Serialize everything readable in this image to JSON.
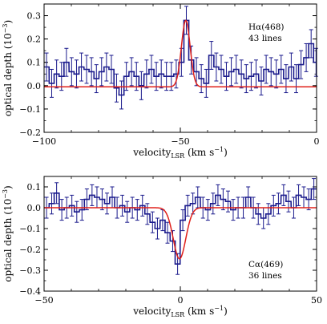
{
  "chart_data": [
    {
      "type": "line",
      "name": "top-panel",
      "annotation": {
        "line1": "Hα(468)",
        "line2": "43 lines"
      },
      "xlabel": {
        "main": "velocity",
        "sub": "LSR",
        "unit": " (km s",
        "sup": "−1",
        "close": ")"
      },
      "ylabel": "optical depth (10",
      "ylabel_sup": "−3",
      "ylabel_close": ")",
      "xlim": [
        -100,
        0
      ],
      "ylim": [
        -0.2,
        0.35
      ],
      "xticks": [
        -100,
        -50,
        0
      ],
      "xtick_labels": [
        "−100",
        "−50",
        "0"
      ],
      "yticks": [
        -0.2,
        -0.1,
        0.0,
        0.1,
        0.2,
        0.3
      ],
      "ytick_labels": [
        "−0.2",
        "−0.1",
        "0.0",
        "0.1",
        "0.2",
        "0.3"
      ],
      "series": [
        {
          "role": "data-histogram-with-errorbars",
          "color": "#1a1a8c",
          "bin_width": 1.84,
          "x": [
            -99.1,
            -97.2,
            -95.4,
            -93.6,
            -91.8,
            -89.9,
            -88.1,
            -86.3,
            -84.4,
            -82.6,
            -80.8,
            -78.9,
            -77.1,
            -75.3,
            -73.4,
            -71.6,
            -69.8,
            -67.9,
            -66.1,
            -64.3,
            -62.4,
            -60.6,
            -58.8,
            -57.0,
            -55.1,
            -53.3,
            -51.5,
            -49.6,
            -47.8,
            -46.0,
            -44.1,
            -42.3,
            -40.5,
            -38.6,
            -36.8,
            -35.0,
            -33.1,
            -31.3,
            -29.5,
            -27.6,
            -25.8,
            -24.0,
            -22.2,
            -20.3,
            -18.5,
            -16.7,
            -14.8,
            -13.0,
            -11.2,
            -9.3,
            -7.5,
            -5.7,
            -3.8,
            -2.0,
            -0.2
          ],
          "y": [
            0.08,
            0.01,
            0.05,
            0.04,
            0.1,
            0.06,
            0.05,
            0.08,
            0.07,
            0.06,
            0.03,
            0.06,
            0.08,
            0.07,
            -0.01,
            -0.04,
            0.04,
            0.06,
            0.04,
            0.0,
            0.05,
            0.07,
            0.04,
            0.05,
            0.04,
            0.04,
            0.05,
            0.1,
            0.28,
            0.11,
            0.06,
            0.03,
            0.01,
            0.13,
            0.08,
            0.07,
            0.04,
            0.06,
            0.07,
            0.05,
            0.03,
            0.04,
            0.05,
            0.02,
            0.07,
            0.06,
            0.05,
            0.07,
            0.03,
            0.08,
            0.03,
            0.09,
            0.12,
            0.18,
            0.1
          ],
          "err": [
            0.06,
            0.06,
            0.06,
            0.06,
            0.06,
            0.06,
            0.06,
            0.06,
            0.06,
            0.06,
            0.06,
            0.06,
            0.06,
            0.06,
            0.06,
            0.06,
            0.06,
            0.06,
            0.06,
            0.06,
            0.06,
            0.06,
            0.06,
            0.06,
            0.06,
            0.06,
            0.06,
            0.06,
            0.06,
            0.06,
            0.06,
            0.06,
            0.06,
            0.06,
            0.06,
            0.06,
            0.06,
            0.06,
            0.06,
            0.06,
            0.06,
            0.06,
            0.06,
            0.06,
            0.06,
            0.06,
            0.06,
            0.06,
            0.06,
            0.06,
            0.06,
            0.06,
            0.06,
            0.06,
            0.06
          ]
        },
        {
          "role": "gaussian-fit",
          "color": "#e0201a",
          "baseline": -0.005,
          "peak": 0.285,
          "center": -48.0,
          "sigma": 1.6
        }
      ]
    },
    {
      "type": "line",
      "name": "bottom-panel",
      "annotation": {
        "line1": "Cα(469)",
        "line2": "36 lines"
      },
      "xlabel": {
        "main": "velocity",
        "sub": "LSR",
        "unit": " (km s",
        "sup": "−1",
        "close": ")"
      },
      "ylabel": "optical depth (10",
      "ylabel_sup": "−3",
      "ylabel_close": ")",
      "xlim": [
        -50,
        50
      ],
      "ylim": [
        -0.4,
        0.15
      ],
      "xticks": [
        -50,
        0,
        50
      ],
      "xtick_labels": [
        "−50",
        "0",
        "50"
      ],
      "yticks": [
        -0.4,
        -0.3,
        -0.2,
        -0.1,
        0.0,
        0.1
      ],
      "ytick_labels": [
        "−0.4",
        "−0.3",
        "−0.2",
        "−0.1",
        "0.0",
        "0.1"
      ],
      "series": [
        {
          "role": "data-histogram-with-errorbars",
          "color": "#1a1a8c",
          "bin_width": 1.85,
          "x": [
            -49.1,
            -47.2,
            -45.4,
            -43.5,
            -41.7,
            -39.8,
            -38.0,
            -36.1,
            -34.3,
            -32.4,
            -30.6,
            -28.7,
            -26.9,
            -25.0,
            -23.2,
            -21.3,
            -19.5,
            -17.6,
            -15.8,
            -13.9,
            -12.1,
            -10.2,
            -8.4,
            -6.5,
            -4.7,
            -2.8,
            -1.0,
            0.9,
            2.7,
            4.6,
            6.4,
            8.3,
            10.1,
            12.0,
            13.8,
            15.7,
            17.5,
            19.4,
            21.2,
            23.1,
            24.9,
            26.8,
            28.6,
            30.5,
            32.3,
            34.2,
            36.0,
            37.9,
            39.7,
            41.6,
            43.4,
            45.3,
            47.1,
            49.0
          ],
          "y": [
            0.0,
            0.02,
            0.07,
            -0.01,
            0.0,
            0.01,
            -0.02,
            -0.01,
            0.04,
            0.06,
            0.05,
            0.04,
            0.02,
            0.05,
            0.0,
            0.01,
            -0.02,
            0.0,
            -0.01,
            0.01,
            -0.03,
            -0.07,
            -0.1,
            -0.06,
            -0.12,
            -0.16,
            -0.27,
            -0.06,
            0.01,
            0.02,
            0.05,
            0.0,
            -0.01,
            0.02,
            0.06,
            0.04,
            0.03,
            -0.01,
            0.0,
            0.0,
            0.05,
            0.0,
            -0.03,
            -0.05,
            -0.03,
            0.01,
            0.02,
            0.06,
            0.03,
            0.0,
            0.06,
            0.05,
            0.04,
            0.09
          ],
          "err": [
            0.05,
            0.05,
            0.05,
            0.05,
            0.05,
            0.05,
            0.05,
            0.05,
            0.05,
            0.05,
            0.05,
            0.05,
            0.05,
            0.05,
            0.05,
            0.05,
            0.05,
            0.05,
            0.05,
            0.05,
            0.05,
            0.05,
            0.05,
            0.05,
            0.05,
            0.05,
            0.05,
            0.05,
            0.05,
            0.05,
            0.05,
            0.05,
            0.05,
            0.05,
            0.05,
            0.05,
            0.05,
            0.05,
            0.05,
            0.05,
            0.05,
            0.05,
            0.05,
            0.05,
            0.05,
            0.05,
            0.05,
            0.05,
            0.05,
            0.05,
            0.05,
            0.05,
            0.05,
            0.05
          ]
        },
        {
          "role": "gaussian-fit",
          "color": "#e0201a",
          "baseline": 0.0,
          "peak": -0.245,
          "center": -0.3,
          "sigma": 2.3
        }
      ]
    }
  ]
}
